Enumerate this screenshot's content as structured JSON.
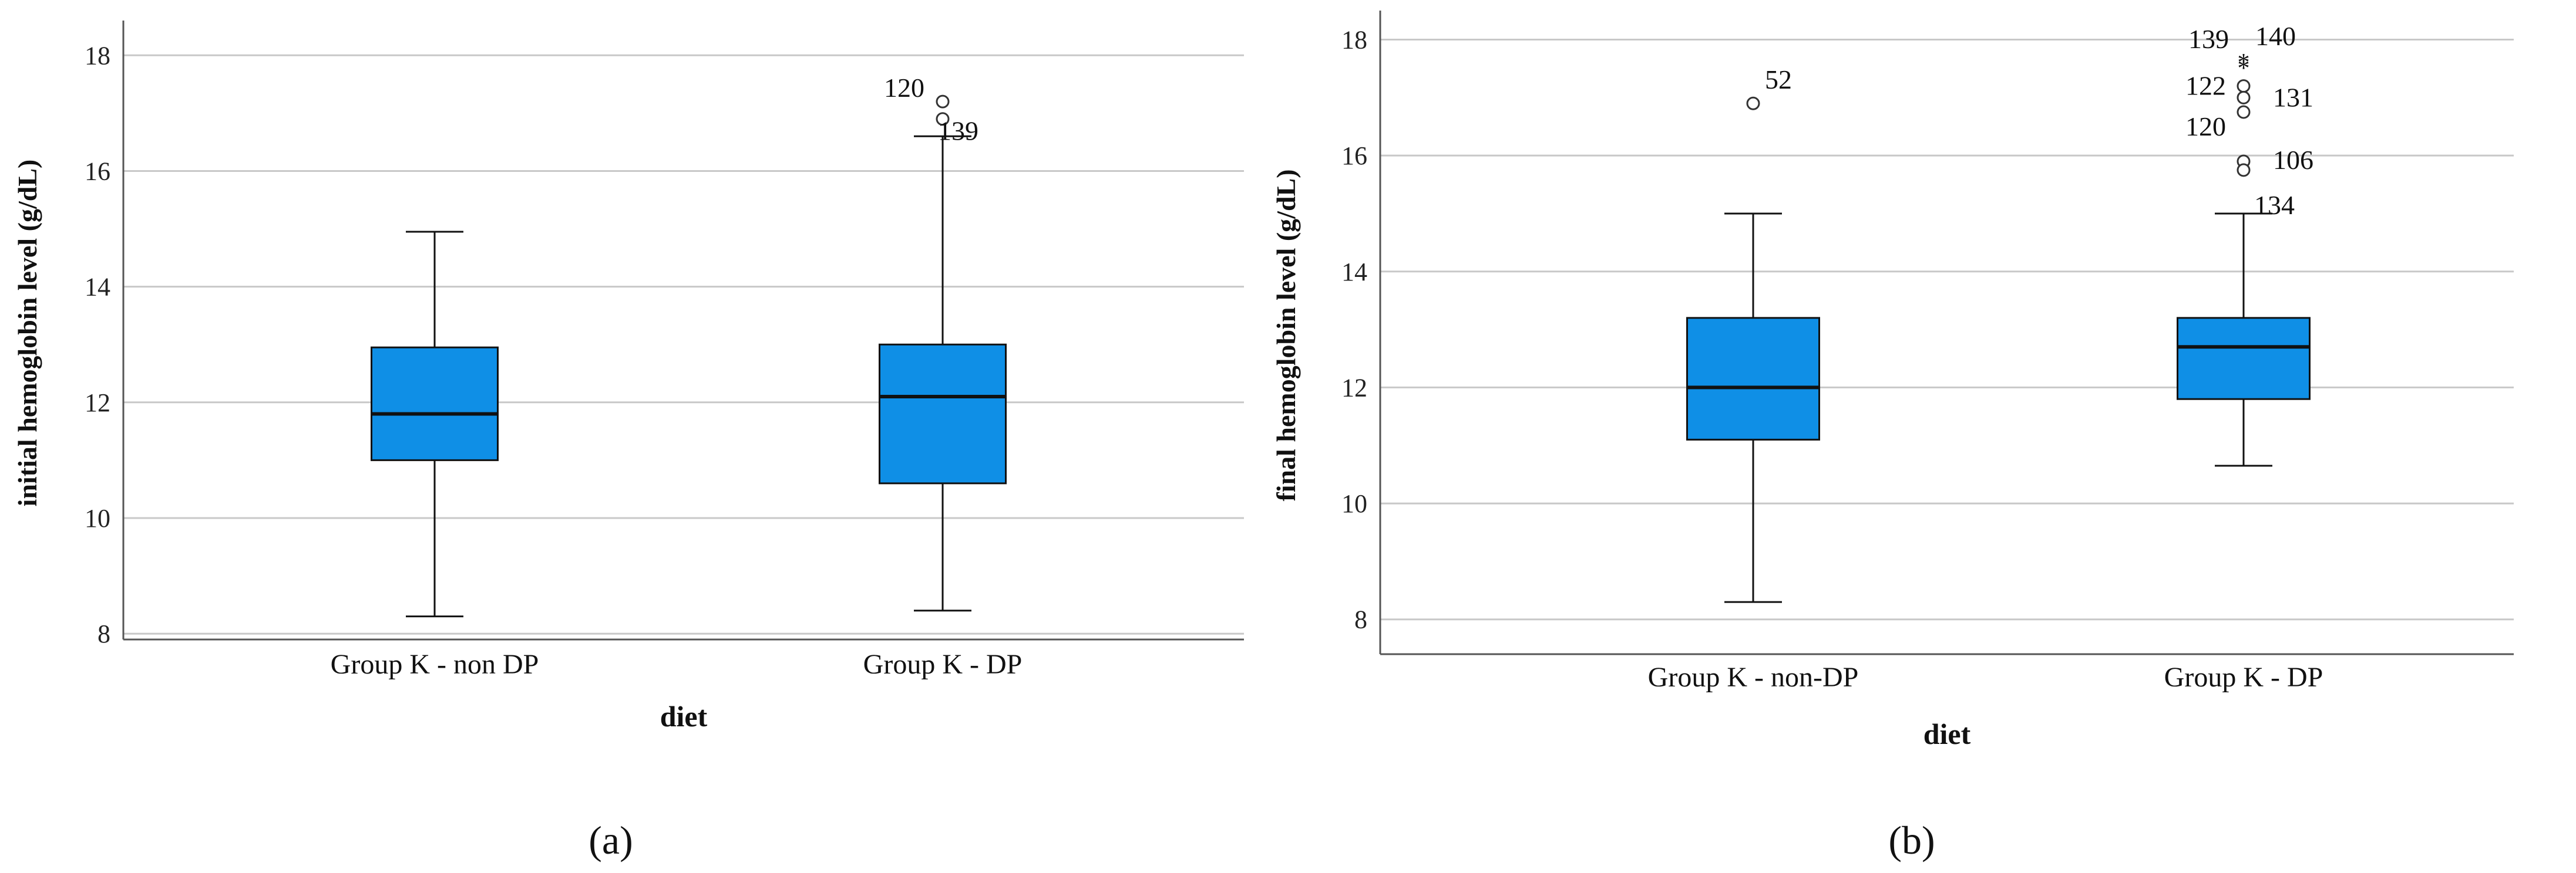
{
  "chart_data": [
    {
      "type": "boxplot",
      "panel_label": "(a)",
      "ylabel": "initial hemoglobin level (g/dL)",
      "xlabel": "diet",
      "ylim": [
        7.9,
        18.5
      ],
      "yticks": [
        8,
        10,
        12,
        14,
        16,
        18
      ],
      "grid": true,
      "categories": [
        "Group K - non DP",
        "Group K - DP"
      ],
      "boxes": [
        {
          "category": "Group K - non DP",
          "min": 8.3,
          "q1": 11.0,
          "median": 11.8,
          "q3": 12.95,
          "max": 14.95,
          "outliers": []
        },
        {
          "category": "Group K - DP",
          "min": 8.4,
          "q1": 10.6,
          "median": 12.1,
          "q3": 13.0,
          "max": 16.6,
          "outliers": [
            {
              "value": 17.2,
              "marker": "circle",
              "label": "120"
            },
            {
              "value": 16.9,
              "marker": "circle",
              "label": "139"
            }
          ]
        }
      ]
    },
    {
      "type": "boxplot",
      "panel_label": "(b)",
      "ylabel": "final hemoglobin level (g/dL)",
      "xlabel": "diet",
      "ylim": [
        7.4,
        18.4
      ],
      "yticks": [
        8,
        10,
        12,
        14,
        16,
        18
      ],
      "grid": true,
      "categories": [
        "Group K - non-DP",
        "Group K - DP"
      ],
      "boxes": [
        {
          "category": "Group K - non-DP",
          "min": 8.3,
          "q1": 11.1,
          "median": 12.0,
          "q3": 13.2,
          "max": 15.0,
          "outliers": [
            {
              "value": 16.9,
              "marker": "circle",
              "label": "52"
            }
          ]
        },
        {
          "category": "Group K - DP",
          "min": 10.65,
          "q1": 11.8,
          "median": 12.7,
          "q3": 13.2,
          "max": 15.0,
          "outliers": [
            {
              "value": 17.65,
              "marker": "star",
              "label": "139"
            },
            {
              "value": 17.55,
              "marker": "star",
              "label": "140"
            },
            {
              "value": 17.2,
              "marker": "circle",
              "label": "122"
            },
            {
              "value": 17.0,
              "marker": "circle",
              "label": "131"
            },
            {
              "value": 16.75,
              "marker": "circle",
              "label": "120"
            },
            {
              "value": 15.9,
              "marker": "circle",
              "label": "106"
            },
            {
              "value": 15.75,
              "marker": "circle",
              "label": "134"
            }
          ]
        }
      ]
    }
  ],
  "colors": {
    "box_fill": "#0f8fe6",
    "grid": "#c8c8c8",
    "axis": "#555555",
    "line": "#111111"
  }
}
